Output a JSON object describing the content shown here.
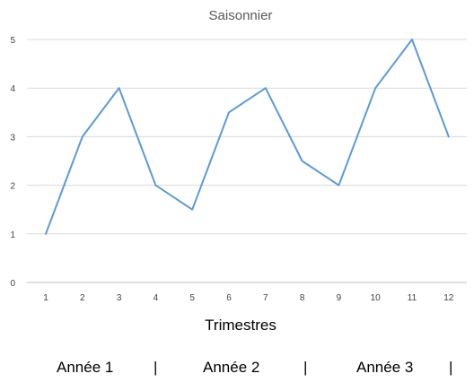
{
  "chart_data": {
    "type": "line",
    "title": "Saisonnier",
    "xlabel": "Trimestres",
    "ylabel": "",
    "x": [
      1,
      2,
      3,
      4,
      5,
      6,
      7,
      8,
      9,
      10,
      11,
      12
    ],
    "series": [
      {
        "values": [
          1,
          3,
          4,
          2,
          1.5,
          3.5,
          4,
          2.5,
          2,
          4,
          5,
          3
        ]
      }
    ],
    "ylim": [
      0,
      5
    ],
    "yticks": [
      0,
      1,
      2,
      3,
      4,
      5
    ],
    "grid": true,
    "legend": "none",
    "colors": {
      "series": "#5b9bd5",
      "grid": "#d9d9d9"
    }
  },
  "footer": {
    "year1": "Année 1",
    "sep1": "|",
    "year2": "Année 2",
    "sep2": "|",
    "year3": "Année 3",
    "sep3": "|"
  }
}
